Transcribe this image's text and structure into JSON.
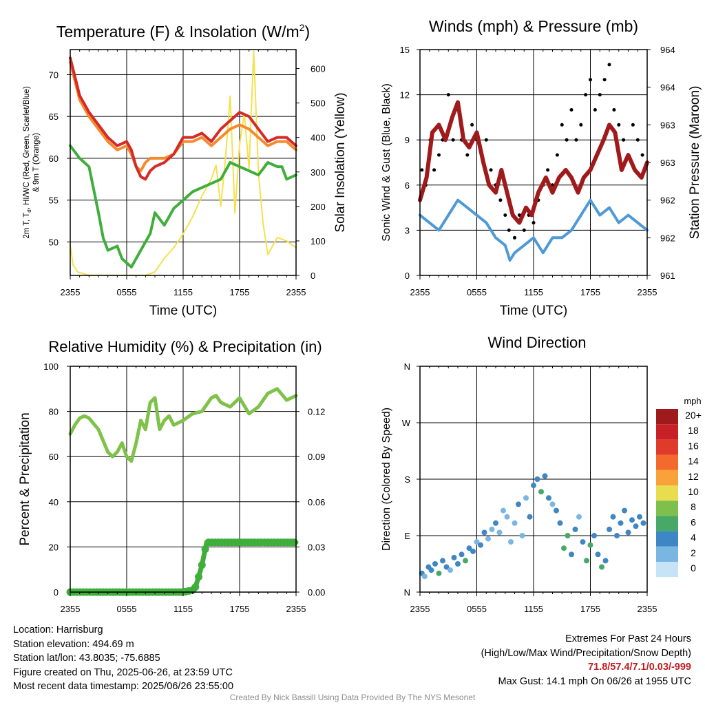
{
  "chart_data": [
    {
      "type": "line",
      "title": "Temperature (F) & Insolation (W/m²)",
      "title_main": "Temperature (F) & Insolation (W/m",
      "title_sup": "2",
      "title_tail": ")",
      "xlabel": "Time (UTC)",
      "ylabel_line1": "2m T, T",
      "ylabel_sub": "d",
      "ylabel_line1_tail": ", HI/WC (Red, Green, Scarlet/Blue)",
      "ylabel_line2": "& 9m T (Orange)",
      "ylabel_right": "Solar Insolation (Yellow)",
      "x_ticks": [
        "2355",
        "0555",
        "1155",
        "1755",
        "2355"
      ],
      "xlim": [
        0,
        24
      ],
      "ylim": [
        46,
        73
      ],
      "y_ticks": [
        50,
        55,
        60,
        65,
        70
      ],
      "ylim_right": [
        0,
        655
      ],
      "y_ticks_right": [
        0,
        100,
        200,
        300,
        400,
        500,
        600
      ],
      "grid": true,
      "series": [
        {
          "name": "2m T",
          "color": "#d52a26",
          "axis": "left",
          "x": [
            0,
            1,
            2,
            3,
            4,
            5,
            6,
            6.5,
            7,
            7.5,
            8,
            8.5,
            9,
            10,
            11,
            12,
            13,
            14,
            15,
            16,
            17,
            18,
            19,
            20,
            21,
            22,
            23,
            24
          ],
          "y": [
            72.0,
            67.5,
            65.5,
            64.0,
            62.5,
            61.5,
            62.0,
            61.0,
            59.0,
            57.8,
            57.5,
            58.5,
            59.0,
            59.5,
            60.5,
            62.5,
            62.5,
            63.0,
            62.0,
            63.5,
            64.5,
            65.5,
            65.0,
            63.5,
            62.0,
            62.5,
            62.5,
            61.5
          ]
        },
        {
          "name": "9m T",
          "color": "#f48a2e",
          "axis": "left",
          "x": [
            0,
            1,
            2,
            3,
            4,
            5,
            6,
            6.5,
            7,
            7.5,
            8,
            8.5,
            9,
            10,
            11,
            12,
            13,
            14,
            15,
            16,
            17,
            18,
            19,
            20,
            21,
            22,
            23,
            24
          ],
          "y": [
            71.5,
            67.0,
            65.0,
            63.5,
            62.0,
            61.0,
            61.5,
            60.5,
            59.0,
            58.5,
            59.5,
            60.0,
            60.0,
            60.0,
            60.5,
            62.0,
            62.0,
            62.5,
            61.5,
            62.5,
            63.5,
            64.0,
            63.5,
            62.5,
            61.5,
            62.0,
            62.0,
            61.0
          ]
        },
        {
          "name": "T d",
          "color": "#3fae3a",
          "axis": "left",
          "x": [
            0,
            1,
            2,
            3,
            3.5,
            4,
            5,
            5.5,
            6,
            6.5,
            7,
            8,
            8.5,
            9,
            10,
            11,
            12,
            13,
            14,
            15,
            16,
            17,
            18,
            19,
            20,
            21,
            22,
            22.5,
            23,
            24
          ],
          "y": [
            61.5,
            60.0,
            59.0,
            53.5,
            50.5,
            49.0,
            49.5,
            48.0,
            47.5,
            47.0,
            48.0,
            50.0,
            51.0,
            53.5,
            52.0,
            54.0,
            55.0,
            56.0,
            56.5,
            57.0,
            57.5,
            59.5,
            59.0,
            58.5,
            58.0,
            59.5,
            59.0,
            59.0,
            57.5,
            58.0
          ]
        },
        {
          "name": "Solar Insolation",
          "color": "#f6e04c",
          "axis": "right",
          "x": [
            0,
            0.3,
            0.8,
            2,
            4,
            6,
            8,
            9,
            10,
            11,
            12,
            13,
            14,
            15,
            15.5,
            16,
            16.5,
            17,
            17.5,
            18,
            18.5,
            19,
            19.5,
            20,
            20.5,
            21,
            22,
            23,
            23.5,
            24
          ],
          "y": [
            90,
            30,
            10,
            0,
            0,
            0,
            0,
            10,
            50,
            80,
            120,
            170,
            230,
            280,
            320,
            200,
            340,
            520,
            180,
            380,
            470,
            310,
            650,
            300,
            150,
            60,
            110,
            100,
            90,
            80
          ]
        }
      ]
    },
    {
      "type": "scatter",
      "title": "Winds (mph) & Pressure (mb)",
      "xlabel": "Time (UTC)",
      "ylabel": "Sonic Wind & Gust (Blue, Black)",
      "ylabel_right": "Station Pressure (Maroon)",
      "x_ticks": [
        "2355",
        "0555",
        "1155",
        "1755",
        "2355"
      ],
      "xlim": [
        0,
        24
      ],
      "ylim": [
        0,
        15
      ],
      "y_ticks": [
        0,
        3,
        6,
        9,
        12,
        15
      ],
      "y_ticks_right": [
        "961",
        "962",
        "962",
        "963",
        "963",
        "964",
        "964"
      ],
      "grid": true,
      "series": [
        {
          "name": "Sonic Wind",
          "color": "#4d9ad7",
          "x": [
            0,
            1,
            2,
            3,
            4,
            5,
            6,
            7,
            8,
            9,
            9.5,
            10,
            11,
            12,
            13,
            14,
            15,
            16,
            17,
            18,
            19,
            20,
            21,
            22,
            23,
            24
          ],
          "y": [
            4.0,
            3.5,
            3.0,
            4.0,
            5.0,
            4.5,
            4.0,
            3.5,
            2.5,
            2.0,
            1.0,
            1.5,
            2.0,
            2.5,
            1.5,
            2.5,
            2.5,
            3.0,
            4.0,
            5.0,
            4.0,
            4.5,
            3.5,
            4.0,
            3.5,
            3.0
          ]
        },
        {
          "name": "Gust",
          "color": "#000000",
          "x": [
            0.2,
            0.6,
            1.1,
            1.5,
            2.0,
            2.4,
            3.0,
            3.5,
            4.0,
            4.4,
            5.0,
            5.5,
            6.0,
            6.5,
            7.0,
            7.5,
            8.0,
            8.5,
            9.0,
            9.4,
            10.0,
            10.5,
            11.0,
            11.5,
            12.0,
            12.5,
            13.0,
            13.5,
            14.0,
            14.5,
            15.0,
            15.5,
            16.0,
            16.5,
            17.0,
            17.5,
            18.0,
            18.5,
            19.0,
            19.5,
            20.0,
            20.5,
            21.0,
            21.5,
            22.0,
            22.5,
            23.0,
            23.5
          ],
          "y": [
            7,
            6,
            9,
            7,
            8,
            9,
            12,
            9,
            11,
            9,
            8,
            10,
            9,
            8,
            9,
            7,
            6,
            5,
            4,
            3,
            2.5,
            4,
            3,
            4,
            3.5,
            5,
            6,
            7,
            6,
            8,
            10,
            9,
            11,
            9,
            10,
            12,
            13,
            11,
            12,
            13,
            14,
            11,
            10,
            9,
            8,
            10,
            9,
            8
          ]
        },
        {
          "name": "Station Pressure",
          "color": "#a01a1c",
          "x": [
            0,
            0.7,
            1.3,
            2,
            2.7,
            3.4,
            4,
            4.6,
            5.2,
            6,
            6.7,
            7.3,
            8,
            8.6,
            9.2,
            9.8,
            10.5,
            11.2,
            11.8,
            12.5,
            13.3,
            14,
            14.7,
            15.4,
            16,
            16.7,
            17.3,
            18,
            18.7,
            19.4,
            20,
            20.6,
            21.3,
            22,
            22.7,
            23.4,
            24
          ],
          "y": [
            5.0,
            6.5,
            9.5,
            10.0,
            9.0,
            10.5,
            11.5,
            9.0,
            8.5,
            9.5,
            7.5,
            6.0,
            5.5,
            7.0,
            5.5,
            4.0,
            3.5,
            4.5,
            4.0,
            5.5,
            6.5,
            5.5,
            6.5,
            7.0,
            6.5,
            5.5,
            6.5,
            7.0,
            8.0,
            9.0,
            10.0,
            9.5,
            7.0,
            8.0,
            7.0,
            6.5,
            7.5
          ]
        }
      ]
    },
    {
      "type": "line",
      "title": "Relative Humidity (%) & Precipitation (in)",
      "xlabel": "",
      "ylabel": "Percent & Precipitation",
      "x_ticks": [
        "2355",
        "0555",
        "1155",
        "1755",
        "2355"
      ],
      "xlim": [
        0,
        24
      ],
      "ylim": [
        0,
        100
      ],
      "y_ticks": [
        0,
        20,
        40,
        60,
        80,
        100
      ],
      "y_ticks_right": [
        "0.00",
        "0.03",
        "0.06",
        "0.09",
        "0.12"
      ],
      "grid": true,
      "series": [
        {
          "name": "Relative Humidity",
          "color": "#7fc24a",
          "x": [
            0,
            0.5,
            1,
            1.5,
            2,
            3,
            4,
            4.5,
            5,
            5.5,
            6,
            6.5,
            7,
            7.5,
            8,
            8.5,
            9,
            9.5,
            10,
            10.5,
            11,
            12,
            13,
            14,
            15,
            15.5,
            16,
            17,
            18,
            19,
            20,
            21,
            22,
            23,
            24
          ],
          "y": [
            70,
            74,
            77,
            78,
            77,
            72,
            62,
            60,
            62,
            66,
            60,
            58,
            66,
            76,
            72,
            84,
            86,
            72,
            76,
            78,
            74,
            76,
            79,
            80,
            86,
            87,
            84,
            82,
            86,
            79,
            82,
            88,
            90,
            85,
            87
          ]
        },
        {
          "name": "Precipitation",
          "color": "#3fae3a",
          "x": [
            0,
            2,
            4,
            6,
            8,
            10,
            12,
            13.2,
            13.6,
            14.0,
            14.3,
            14.5,
            15,
            16,
            18,
            20,
            22,
            24
          ],
          "y": [
            0,
            0,
            0,
            0,
            0,
            0,
            0,
            1,
            6,
            12,
            18,
            22,
            22,
            22,
            22,
            22,
            22,
            22
          ]
        }
      ]
    },
    {
      "type": "scatter",
      "title": "Wind Direction",
      "xlabel": "",
      "ylabel": "Direction (Colored By Speed)",
      "x_ticks": [
        "2355",
        "0555",
        "1155",
        "1755",
        "2355"
      ],
      "xlim": [
        0,
        24
      ],
      "ylim": [
        0,
        360
      ],
      "y_ticks": [
        "N",
        "E",
        "S",
        "W",
        "N"
      ],
      "grid": true,
      "legend": {
        "title": "mph",
        "placement": "right",
        "labels": [
          "20+",
          "18",
          "16",
          "14",
          "12",
          "10",
          "8",
          "6",
          "4",
          "2",
          "0"
        ],
        "colors": [
          "#9e1a1c",
          "#c72026",
          "#e03a2b",
          "#f26a2c",
          "#f9a23b",
          "#e9dc4f",
          "#7fbf4c",
          "#48a868",
          "#3f86c4",
          "#79b6e2",
          "#c6e4f6"
        ]
      },
      "points": {
        "x": [
          0.2,
          0.5,
          0.9,
          1.2,
          1.6,
          2.0,
          2.4,
          2.8,
          3.2,
          3.6,
          4.0,
          4.4,
          4.8,
          5.2,
          5.6,
          6.0,
          6.4,
          6.8,
          7.2,
          7.6,
          8.0,
          8.4,
          8.8,
          9.2,
          9.6,
          10.0,
          10.4,
          10.8,
          11.2,
          11.6,
          12.0,
          12.4,
          12.8,
          13.2,
          13.6,
          14.0,
          14.4,
          14.8,
          15.2,
          15.6,
          16.0,
          16.4,
          16.8,
          17.2,
          17.6,
          18.0,
          18.4,
          18.8,
          19.2,
          19.6,
          20.0,
          20.4,
          20.8,
          21.2,
          21.6,
          22.0,
          22.4,
          22.8,
          23.2,
          23.6
        ],
        "y": [
          30,
          25,
          40,
          35,
          45,
          30,
          50,
          40,
          35,
          55,
          45,
          60,
          50,
          70,
          65,
          80,
          75,
          95,
          85,
          100,
          110,
          95,
          130,
          120,
          80,
          110,
          140,
          90,
          150,
          120,
          170,
          180,
          160,
          185,
          150,
          140,
          130,
          110,
          70,
          90,
          60,
          100,
          120,
          80,
          50,
          75,
          90,
          60,
          40,
          50,
          100,
          120,
          90,
          110,
          130,
          95,
          115,
          105,
          120,
          110
        ],
        "speed": [
          3,
          2,
          4,
          3,
          4,
          5,
          3,
          4,
          2,
          3,
          4,
          3,
          5,
          4,
          3,
          2,
          3,
          4,
          1,
          2,
          3,
          2,
          1,
          2,
          1,
          2,
          3,
          1,
          2,
          3,
          4,
          3,
          5,
          4,
          3,
          2,
          3,
          4,
          5,
          6,
          4,
          3,
          2,
          3,
          5,
          6,
          4,
          3,
          5,
          4,
          3,
          4,
          3,
          3,
          4,
          3,
          3,
          4,
          3,
          3
        ]
      }
    }
  ],
  "info": {
    "location": "Location: Harrisburg",
    "elevation": "Station elevation: 494.69 m",
    "latlon": "Station lat/lon: 43.8035; -75.6885",
    "created": "Figure created on Thu, 2025-06-26, at 23:59 UTC",
    "recent": "Most recent data timestamp: 2025/06/26 23:55:00"
  },
  "extremes": {
    "title": "Extremes For Past 24 Hours",
    "subtitle": "(High/Low/Max Wind/Precipitation/Snow Depth)",
    "values": "71.8/57.4/7.1/0.03/-999",
    "max_gust": "Max Gust: 14.1 mph On 06/26 at 1955 UTC"
  },
  "credit": "Created By Nick Bassill Using Data Provided By The NYS Mesonet"
}
